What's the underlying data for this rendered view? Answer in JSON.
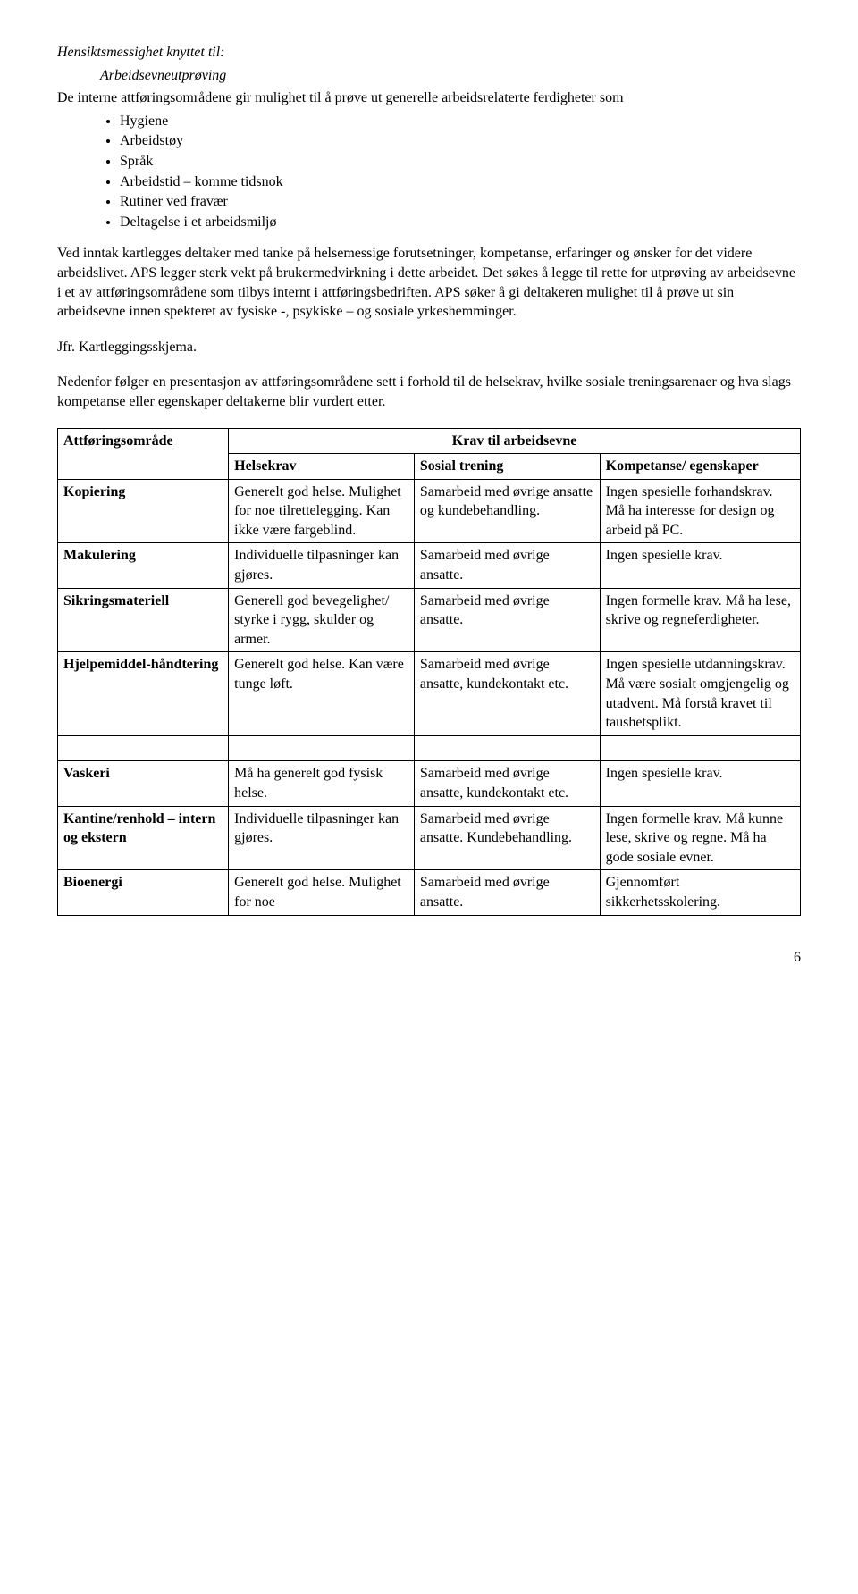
{
  "heading": {
    "line1": "Hensiktsmessighet knyttet til:",
    "line2": "Arbeidsevneutprøving"
  },
  "intro": "De interne attføringsområdene gir mulighet til å prøve ut generelle arbeidsrelaterte ferdigheter som",
  "bullets": [
    "Hygiene",
    "Arbeidstøy",
    "Språk",
    "Arbeidstid – komme tidsnok",
    "Rutiner ved fravær",
    "Deltagelse i et arbeidsmiljø"
  ],
  "para1": "Ved inntak kartlegges deltaker med tanke på helsemessige forutsetninger, kompetanse, erfaringer og ønsker for det videre arbeidslivet. APS legger sterk vekt på brukermedvirkning i dette arbeidet. Det søkes å legge til rette for utprøving av arbeidsevne i et av attføringsområdene som tilbys internt i attføringsbedriften. APS søker å gi deltakeren mulighet til å prøve ut sin arbeidsevne innen spekteret av fysiske -, psykiske – og sosiale yrkeshemminger.",
  "para2": "Jfr. Kartleggingsskjema.",
  "para3": "Nedenfor følger en presentasjon av attføringsområdene sett i forhold til de helsekrav, hvilke sosiale treningsarenaer og hva slags kompetanse eller egenskaper deltakerne blir vurdert etter.",
  "table": {
    "col_widths": [
      "23%",
      "25%",
      "25%",
      "27%"
    ],
    "top_left_label": "Attføringsområde",
    "group_header": "Krav til arbeidsevne",
    "sub_headers": [
      "Helsekrav",
      "Sosial trening",
      "Kompetanse/ egenskaper"
    ],
    "rows": [
      {
        "label": "Kopiering",
        "c1": "Generelt god helse. Mulighet for noe tilrettelegging. Kan ikke være fargeblind.",
        "c2": "Samarbeid med øvrige ansatte og kundebehandling.",
        "c3": "Ingen spesielle forhandskrav. Må ha interesse for design og arbeid på PC."
      },
      {
        "label": "Makulering",
        "c1": "Individuelle tilpasninger kan gjøres.",
        "c2": "Samarbeid med øvrige ansatte.",
        "c3": "Ingen spesielle krav."
      },
      {
        "label": "Sikringsmateriell",
        "c1": "Generell god bevegelighet/ styrke i rygg, skulder og armer.",
        "c2": "Samarbeid med øvrige ansatte.",
        "c3": "Ingen formelle krav. Må ha lese, skrive og regneferdigheter."
      },
      {
        "label": "Hjelpemiddel-håndtering",
        "c1": "Generelt god helse. Kan være tunge løft.",
        "c2": "Samarbeid med øvrige ansatte, kundekontakt etc.",
        "c3": "Ingen spesielle utdanningskrav. Må være sosialt omgjengelig og utadvent. Må forstå kravet til taushetsplikt."
      },
      {
        "label": "Vaskeri",
        "c1": "Må ha generelt god fysisk helse.",
        "c2": "Samarbeid med øvrige ansatte, kundekontakt etc.",
        "c3": "Ingen spesielle krav."
      },
      {
        "label": "Kantine/renhold – intern og ekstern",
        "c1": "Individuelle tilpasninger kan gjøres.",
        "c2": "Samarbeid med øvrige ansatte. Kundebehandling.",
        "c3": "Ingen formelle krav. Må kunne lese, skrive og regne. Må ha gode sosiale evner."
      },
      {
        "label": "Bioenergi",
        "c1": "Generelt god helse. Mulighet for noe",
        "c2": "Samarbeid med øvrige ansatte.",
        "c3": "Gjennomført sikkerhetsskolering."
      }
    ],
    "spacer_after_index": 3
  },
  "page_number": "6"
}
